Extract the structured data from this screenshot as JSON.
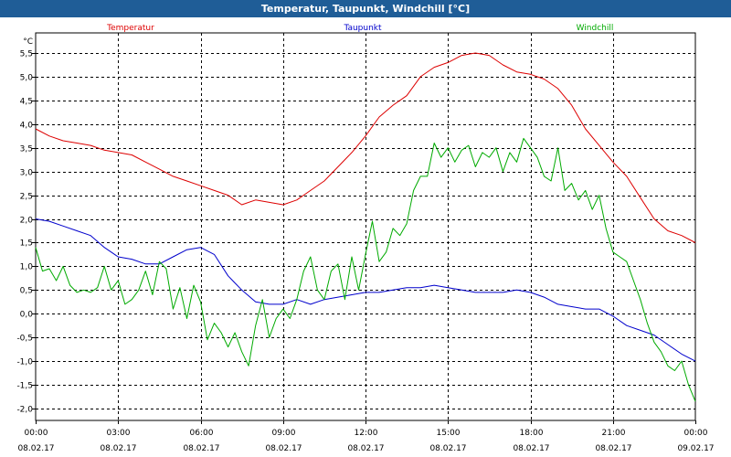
{
  "window": {
    "title": "Temperatur, Taupunkt, Windchill [°C]"
  },
  "chart_data": {
    "type": "line",
    "title": "Temperatur, Taupunkt, Windchill [°C]",
    "ylabel": "°C",
    "xlabel": "",
    "ylim": [
      -2.2,
      5.7
    ],
    "y_ticks": [
      "5,5",
      "5,0",
      "4,5",
      "4,0",
      "3,5",
      "3,0",
      "2,5",
      "2,0",
      "1,5",
      "1,0",
      "0,5",
      "0,0",
      "-0,5",
      "-1,0",
      "-1,5",
      "-2,0"
    ],
    "y_tick_values": [
      5.5,
      5.0,
      4.5,
      4.0,
      3.5,
      3.0,
      2.5,
      2.0,
      1.5,
      1.0,
      0.5,
      0.0,
      -0.5,
      -1.0,
      -1.5,
      -2.0
    ],
    "x_range_hours": [
      0,
      24
    ],
    "x_ticks": [
      {
        "time": "00:00",
        "date": "08.02.17",
        "hours": 0
      },
      {
        "time": "03:00",
        "date": "08.02.17",
        "hours": 3
      },
      {
        "time": "06:00",
        "date": "08.02.17",
        "hours": 6
      },
      {
        "time": "09:00",
        "date": "08.02.17",
        "hours": 9
      },
      {
        "time": "12:00",
        "date": "08.02.17",
        "hours": 12
      },
      {
        "time": "15:00",
        "date": "08.02.17",
        "hours": 15
      },
      {
        "time": "18:00",
        "date": "08.02.17",
        "hours": 18
      },
      {
        "time": "21:00",
        "date": "08.02.17",
        "hours": 21
      },
      {
        "time": "00:00",
        "date": "09.02.17",
        "hours": 24
      }
    ],
    "grid": true,
    "series": [
      {
        "name": "Temperatur",
        "color": "#dd0000",
        "x": [
          0,
          0.5,
          1,
          1.5,
          2,
          2.5,
          3,
          3.5,
          4,
          4.5,
          5,
          5.5,
          6,
          6.5,
          7,
          7.5,
          8,
          8.5,
          9,
          9.5,
          10,
          10.5,
          11,
          11.5,
          12,
          12.5,
          13,
          13.5,
          14,
          14.5,
          15,
          15.5,
          16,
          16.5,
          17,
          17.5,
          18,
          18.5,
          19,
          19.5,
          20,
          20.5,
          21,
          21.5,
          22,
          22.5,
          23,
          23.5,
          24
        ],
        "values": [
          3.9,
          3.75,
          3.65,
          3.6,
          3.55,
          3.45,
          3.4,
          3.35,
          3.2,
          3.05,
          2.9,
          2.8,
          2.7,
          2.6,
          2.5,
          2.3,
          2.4,
          2.35,
          2.3,
          2.4,
          2.6,
          2.8,
          3.1,
          3.4,
          3.75,
          4.15,
          4.4,
          4.6,
          5.0,
          5.2,
          5.3,
          5.45,
          5.5,
          5.45,
          5.25,
          5.1,
          5.05,
          4.95,
          4.75,
          4.4,
          3.9,
          3.55,
          3.2,
          2.9,
          2.45,
          2.0,
          1.75,
          1.65,
          1.5
        ]
      },
      {
        "name": "Taupunkt",
        "color": "#0000cc",
        "x": [
          0,
          0.5,
          1,
          1.5,
          2,
          2.5,
          3,
          3.5,
          4,
          4.5,
          5,
          5.5,
          6,
          6.5,
          7,
          7.5,
          8,
          8.5,
          9,
          9.5,
          10,
          10.5,
          11,
          11.5,
          12,
          12.5,
          13,
          13.5,
          14,
          14.5,
          15,
          15.5,
          16,
          16.5,
          17,
          17.5,
          18,
          18.5,
          19,
          19.5,
          20,
          20.5,
          21,
          21.5,
          22,
          22.5,
          23,
          23.5,
          24
        ],
        "values": [
          2.0,
          1.95,
          1.85,
          1.75,
          1.65,
          1.4,
          1.2,
          1.15,
          1.05,
          1.05,
          1.2,
          1.35,
          1.4,
          1.25,
          0.8,
          0.5,
          0.25,
          0.2,
          0.2,
          0.3,
          0.2,
          0.3,
          0.35,
          0.4,
          0.45,
          0.45,
          0.5,
          0.55,
          0.55,
          0.6,
          0.55,
          0.5,
          0.45,
          0.45,
          0.45,
          0.5,
          0.45,
          0.35,
          0.2,
          0.15,
          0.1,
          0.1,
          -0.05,
          -0.25,
          -0.35,
          -0.45,
          -0.65,
          -0.85,
          -1.0
        ]
      },
      {
        "name": "Windchill",
        "color": "#00aa00",
        "x": [
          0,
          0.25,
          0.5,
          0.75,
          1,
          1.25,
          1.5,
          1.75,
          2,
          2.25,
          2.5,
          2.75,
          3,
          3.25,
          3.5,
          3.75,
          4,
          4.25,
          4.5,
          4.75,
          5,
          5.25,
          5.5,
          5.75,
          6,
          6.25,
          6.5,
          6.75,
          7,
          7.25,
          7.5,
          7.75,
          8,
          8.25,
          8.5,
          8.75,
          9,
          9.25,
          9.5,
          9.75,
          10,
          10.25,
          10.5,
          10.75,
          11,
          11.25,
          11.5,
          11.75,
          12,
          12.25,
          12.5,
          12.75,
          13,
          13.25,
          13.5,
          13.75,
          14,
          14.25,
          14.5,
          14.75,
          15,
          15.25,
          15.5,
          15.75,
          16,
          16.25,
          16.5,
          16.75,
          17,
          17.25,
          17.5,
          17.75,
          18,
          18.25,
          18.5,
          18.75,
          19,
          19.25,
          19.5,
          19.75,
          20,
          20.25,
          20.5,
          20.75,
          21,
          21.25,
          21.5,
          21.75,
          22,
          22.25,
          22.5,
          22.75,
          23,
          23.25,
          23.5,
          23.75,
          24
        ],
        "values": [
          1.4,
          0.9,
          0.95,
          0.7,
          1.0,
          0.6,
          0.45,
          0.5,
          0.45,
          0.55,
          1.0,
          0.5,
          0.7,
          0.2,
          0.3,
          0.5,
          0.9,
          0.4,
          1.1,
          0.95,
          0.1,
          0.55,
          -0.1,
          0.6,
          0.25,
          -0.55,
          -0.2,
          -0.4,
          -0.7,
          -0.4,
          -0.8,
          -1.1,
          -0.25,
          0.3,
          -0.5,
          -0.1,
          0.1,
          -0.1,
          0.3,
          0.9,
          1.2,
          0.5,
          0.3,
          0.9,
          1.05,
          0.3,
          1.2,
          0.5,
          1.25,
          1.95,
          1.1,
          1.3,
          1.8,
          1.65,
          1.9,
          2.6,
          2.9,
          2.9,
          3.6,
          3.3,
          3.5,
          3.2,
          3.45,
          3.55,
          3.1,
          3.4,
          3.3,
          3.5,
          3.0,
          3.4,
          3.2,
          3.7,
          3.5,
          3.3,
          2.9,
          2.8,
          3.5,
          2.6,
          2.75,
          2.4,
          2.6,
          2.2,
          2.5,
          1.8,
          1.3,
          1.2,
          1.1,
          0.7,
          0.3,
          -0.2,
          -0.6,
          -0.8,
          -1.1,
          -1.2,
          -1.0,
          -1.5,
          -1.85
        ]
      }
    ]
  }
}
